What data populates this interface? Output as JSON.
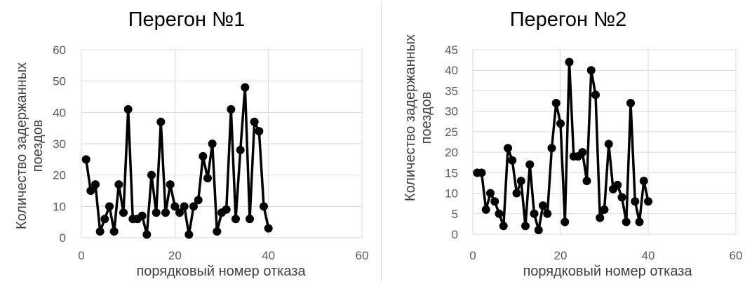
{
  "chart_data": [
    {
      "type": "scatter",
      "title": "Перегон №1",
      "xlabel": "порядковый номер отказа",
      "ylabel": [
        "Количество задержанных",
        "поездов"
      ],
      "xlim": [
        0,
        60
      ],
      "ylim": [
        0,
        60
      ],
      "x_ticks": [
        "0",
        "20",
        "40",
        "60"
      ],
      "y_ticks": [
        "0",
        "10",
        "20",
        "30",
        "40",
        "50",
        "60"
      ],
      "grid": true,
      "series": [
        {
          "x": [
            1,
            2,
            3,
            4,
            5,
            6,
            7,
            8,
            9,
            10,
            11,
            12,
            13,
            14,
            15,
            16,
            17,
            18,
            19,
            20,
            21,
            22,
            23,
            24,
            25,
            26,
            27,
            28,
            29,
            30,
            31,
            32,
            33,
            34,
            35,
            36,
            37,
            38,
            39,
            40
          ],
          "y": [
            25,
            15,
            17,
            2,
            6,
            10,
            2,
            17,
            8,
            41,
            6,
            6,
            7,
            1,
            20,
            8,
            37,
            8,
            17,
            10,
            8,
            10,
            1,
            10,
            12,
            26,
            19,
            30,
            2,
            8,
            9,
            41,
            6,
            28,
            48,
            6,
            37,
            34,
            10,
            3
          ]
        }
      ]
    },
    {
      "type": "scatter",
      "title": "Перегон №2",
      "xlabel": "порядковый номер отказа",
      "ylabel": [
        "Количество задержанных",
        "поездов"
      ],
      "xlim": [
        0,
        60
      ],
      "ylim": [
        0,
        45
      ],
      "x_ticks": [
        "0",
        "20",
        "40",
        "60"
      ],
      "y_ticks": [
        "0",
        "5",
        "10",
        "15",
        "20",
        "25",
        "30",
        "35",
        "40",
        "45"
      ],
      "grid": true,
      "series": [
        {
          "x": [
            1,
            2,
            3,
            4,
            5,
            6,
            7,
            8,
            9,
            10,
            11,
            12,
            13,
            14,
            15,
            16,
            17,
            18,
            19,
            20,
            21,
            22,
            23,
            24,
            25,
            26,
            27,
            28,
            29,
            30,
            31,
            32,
            33,
            34,
            35,
            36,
            37,
            38,
            39,
            40
          ],
          "y": [
            15,
            15,
            6,
            10,
            8,
            5,
            2,
            21,
            18,
            10,
            13,
            2,
            17,
            5,
            1,
            7,
            5,
            21,
            32,
            27,
            3,
            42,
            19,
            19,
            20,
            13,
            40,
            34,
            4,
            6,
            22,
            11,
            12,
            9,
            3,
            32,
            8,
            3,
            13,
            8
          ]
        }
      ]
    }
  ]
}
